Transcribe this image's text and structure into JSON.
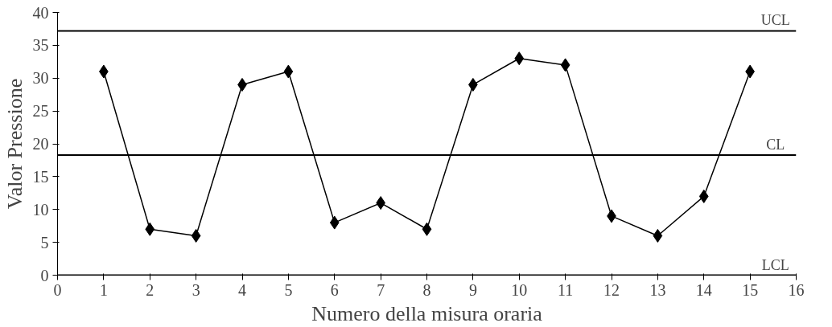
{
  "chart_data": {
    "type": "line",
    "xlabel": "Numero della misura oraria",
    "ylabel": "Valor Pressione",
    "x": [
      1,
      2,
      3,
      4,
      5,
      6,
      7,
      8,
      9,
      10,
      11,
      12,
      13,
      14,
      15
    ],
    "series": [
      {
        "color": "#000000",
        "values": [
          31,
          7,
          6,
          29,
          31,
          8,
          11,
          7,
          29,
          33,
          32,
          9,
          6,
          12,
          31
        ]
      }
    ],
    "xlim": [
      0,
      16
    ],
    "xticks": [
      0,
      1,
      2,
      3,
      4,
      5,
      6,
      7,
      8,
      9,
      10,
      11,
      12,
      13,
      14,
      15,
      16
    ],
    "ylim": [
      0,
      40
    ],
    "yticks": [
      0,
      5,
      10,
      15,
      20,
      25,
      30,
      35,
      40
    ],
    "ref_lines": [
      {
        "axis": "y",
        "value": 37.2,
        "label": "UCL"
      },
      {
        "axis": "y",
        "value": 18.3,
        "label": "CL"
      },
      {
        "axis": "y",
        "value": 0,
        "label": "LCL"
      }
    ],
    "marker": "diamond",
    "line_style": "solid",
    "grid": false
  }
}
